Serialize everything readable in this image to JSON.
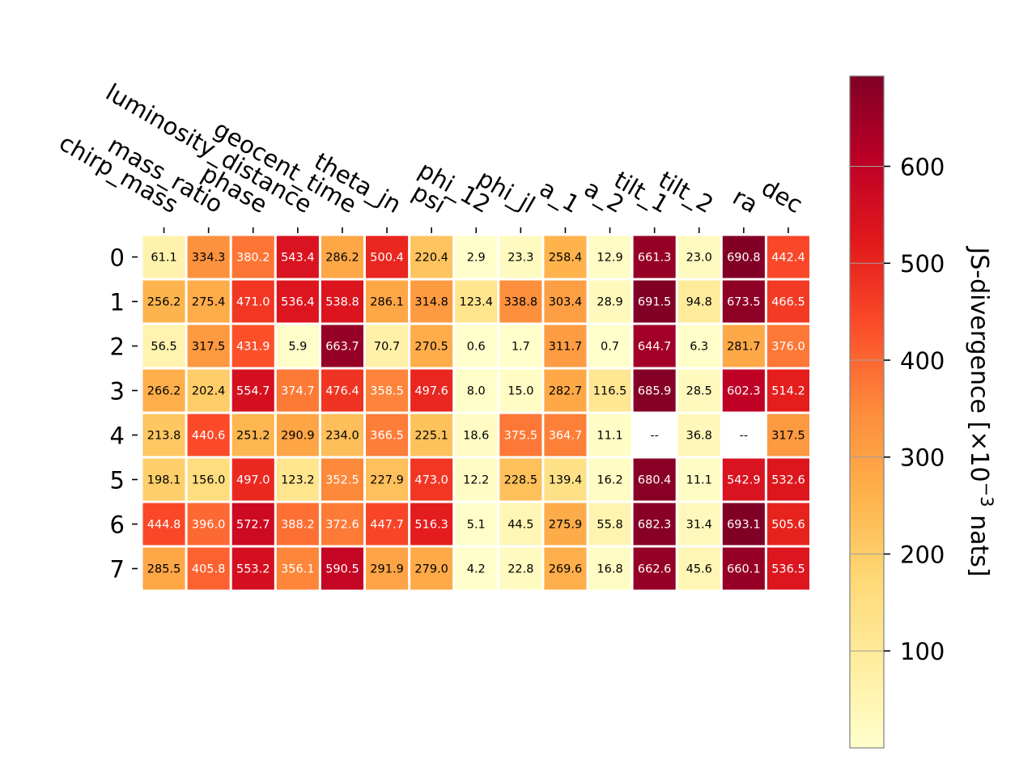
{
  "chart_data": {
    "type": "heatmap",
    "title": "",
    "x_categories": [
      "chirp_mass",
      "mass_ratio",
      "phase",
      "luminosity_distance",
      "geocent_time",
      "theta_jn",
      "psi",
      "phi_12",
      "phi_jl",
      "a_1",
      "a_2",
      "tilt_1",
      "tilt_2",
      "ra",
      "dec"
    ],
    "y_categories": [
      "0",
      "1",
      "2",
      "3",
      "4",
      "5",
      "6",
      "7"
    ],
    "values": [
      [
        61.1,
        334.3,
        380.2,
        543.4,
        286.2,
        500.4,
        220.4,
        2.9,
        23.3,
        258.4,
        12.9,
        661.3,
        23.0,
        690.8,
        442.4
      ],
      [
        256.2,
        275.4,
        471.0,
        536.4,
        538.8,
        286.1,
        314.8,
        123.4,
        338.8,
        303.4,
        28.9,
        691.5,
        94.8,
        673.5,
        466.5
      ],
      [
        56.5,
        317.5,
        431.9,
        5.9,
        663.7,
        70.7,
        270.5,
        0.6,
        1.7,
        311.7,
        0.7,
        644.7,
        6.3,
        281.7,
        376.0
      ],
      [
        266.2,
        202.4,
        554.7,
        374.7,
        476.4,
        358.5,
        497.6,
        8.0,
        15.0,
        282.7,
        116.5,
        685.9,
        28.5,
        602.3,
        514.2
      ],
      [
        213.8,
        440.6,
        251.2,
        290.9,
        234.0,
        366.5,
        225.1,
        18.6,
        375.5,
        364.7,
        11.1,
        null,
        36.8,
        null,
        317.5
      ],
      [
        198.1,
        156.0,
        497.0,
        123.2,
        352.5,
        227.9,
        473.0,
        12.2,
        228.5,
        139.4,
        16.2,
        680.4,
        11.1,
        542.9,
        532.6
      ],
      [
        444.8,
        396.0,
        572.7,
        388.2,
        372.6,
        447.7,
        516.3,
        5.1,
        44.5,
        275.9,
        55.8,
        682.3,
        31.4,
        693.1,
        505.6
      ],
      [
        285.5,
        405.8,
        553.2,
        356.1,
        590.5,
        291.9,
        279.0,
        4.2,
        22.8,
        269.6,
        16.8,
        662.6,
        45.6,
        660.1,
        536.5
      ]
    ],
    "missing_label": "--",
    "colorbar": {
      "label_prefix": "JS-divergence [×10",
      "label_exp": "−3",
      "label_suffix": " nats]",
      "range": [
        0,
        693.1
      ],
      "ticks": [
        100,
        200,
        300,
        400,
        500,
        600
      ],
      "colormap": "YlOrRd"
    }
  }
}
